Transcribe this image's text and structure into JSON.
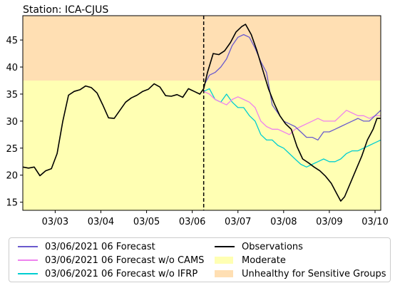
{
  "chart_data": {
    "type": "line",
    "title": "Station: ICA-CJUS",
    "xlabel": "",
    "ylabel": "",
    "xlim": [
      "2021-03-02 07:00",
      "2021-03-10 03:00"
    ],
    "ylim": [
      13.5,
      49.5
    ],
    "x_ticks": [
      "03/03",
      "03/04",
      "03/05",
      "03/06",
      "03/07",
      "03/08",
      "03/09",
      "03/10"
    ],
    "y_ticks": [
      15,
      20,
      25,
      30,
      35,
      40,
      45
    ],
    "bands": [
      {
        "name": "Moderate",
        "y0": 13.5,
        "y1": 37.5,
        "color": "#ffffb3"
      },
      {
        "name": "Unhealthy for Sensitive Groups",
        "y0": 37.5,
        "y1": 49.5,
        "color": "#ffdfb3"
      }
    ],
    "vline": {
      "x": "2021-03-06 06:00",
      "style": "dashed"
    },
    "series": [
      {
        "name": "Observations",
        "color": "#000000",
        "points": [
          [
            "2021-03-02 07:00",
            21.5
          ],
          [
            "2021-03-02 10:00",
            21.3
          ],
          [
            "2021-03-02 13:00",
            21.5
          ],
          [
            "2021-03-02 16:00",
            19.9
          ],
          [
            "2021-03-02 19:00",
            20.8
          ],
          [
            "2021-03-02 22:00",
            21.2
          ],
          [
            "2021-03-03 01:00",
            24
          ],
          [
            "2021-03-03 04:00",
            30
          ],
          [
            "2021-03-03 07:00",
            34.8
          ],
          [
            "2021-03-03 10:00",
            35.5
          ],
          [
            "2021-03-03 13:00",
            35.8
          ],
          [
            "2021-03-03 16:00",
            36.5
          ],
          [
            "2021-03-03 19:00",
            36.2
          ],
          [
            "2021-03-03 22:00",
            35.2
          ],
          [
            "2021-03-04 01:00",
            33
          ],
          [
            "2021-03-04 04:00",
            30.6
          ],
          [
            "2021-03-04 07:00",
            30.5
          ],
          [
            "2021-03-04 10:00",
            32
          ],
          [
            "2021-03-04 13:00",
            33.5
          ],
          [
            "2021-03-04 16:00",
            34.3
          ],
          [
            "2021-03-04 19:00",
            34.8
          ],
          [
            "2021-03-04 22:00",
            35.5
          ],
          [
            "2021-03-05 01:00",
            35.9
          ],
          [
            "2021-03-05 04:00",
            36.9
          ],
          [
            "2021-03-05 07:00",
            36.3
          ],
          [
            "2021-03-05 10:00",
            34.7
          ],
          [
            "2021-03-05 13:00",
            34.6
          ],
          [
            "2021-03-05 16:00",
            34.9
          ],
          [
            "2021-03-05 19:00",
            34.4
          ],
          [
            "2021-03-05 22:00",
            36
          ],
          [
            "2021-03-06 01:00",
            35.5
          ],
          [
            "2021-03-06 04:00",
            35
          ],
          [
            "2021-03-06 06:00",
            36
          ],
          [
            "2021-03-06 08:00",
            39
          ],
          [
            "2021-03-06 11:00",
            42.5
          ],
          [
            "2021-03-06 14:00",
            42.3
          ],
          [
            "2021-03-06 17:00",
            43
          ],
          [
            "2021-03-06 20:00",
            44.5
          ],
          [
            "2021-03-06 23:00",
            46.5
          ],
          [
            "2021-03-07 02:00",
            47.5
          ],
          [
            "2021-03-07 04:00",
            47.9
          ],
          [
            "2021-03-07 07:00",
            46
          ],
          [
            "2021-03-07 10:00",
            43
          ],
          [
            "2021-03-07 13:00",
            39.5
          ],
          [
            "2021-03-07 16:00",
            36
          ],
          [
            "2021-03-07 19:00",
            33.3
          ],
          [
            "2021-03-07 22:00",
            31
          ],
          [
            "2021-03-08 01:00",
            29.5
          ],
          [
            "2021-03-08 04:00",
            28.5
          ],
          [
            "2021-03-08 07:00",
            25.3
          ],
          [
            "2021-03-08 10:00",
            23
          ],
          [
            "2021-03-08 13:00",
            22.3
          ],
          [
            "2021-03-08 16:00",
            21.5
          ],
          [
            "2021-03-08 19:00",
            20.8
          ],
          [
            "2021-03-08 22:00",
            19.8
          ],
          [
            "2021-03-09 01:00",
            18.5
          ],
          [
            "2021-03-09 04:00",
            16.5
          ],
          [
            "2021-03-09 06:00",
            15.2
          ],
          [
            "2021-03-09 08:00",
            16
          ],
          [
            "2021-03-09 11:00",
            18.5
          ],
          [
            "2021-03-09 14:00",
            21
          ],
          [
            "2021-03-09 17:00",
            23.5
          ],
          [
            "2021-03-09 20:00",
            26.5
          ],
          [
            "2021-03-09 23:00",
            28.5
          ],
          [
            "2021-03-10 01:00",
            30.5
          ],
          [
            "2021-03-10 03:00",
            30.5
          ]
        ]
      },
      {
        "name": "03/06/2021 06 Forecast",
        "color": "#6a5acd",
        "points": [
          [
            "2021-03-06 06:00",
            36.5
          ],
          [
            "2021-03-06 09:00",
            38.5
          ],
          [
            "2021-03-06 12:00",
            39
          ],
          [
            "2021-03-06 15:00",
            40
          ],
          [
            "2021-03-06 18:00",
            41.5
          ],
          [
            "2021-03-06 21:00",
            44
          ],
          [
            "2021-03-07 00:00",
            45.5
          ],
          [
            "2021-03-07 03:00",
            46
          ],
          [
            "2021-03-07 06:00",
            45.5
          ],
          [
            "2021-03-07 09:00",
            43.5
          ],
          [
            "2021-03-07 12:00",
            41
          ],
          [
            "2021-03-07 15:00",
            39
          ],
          [
            "2021-03-07 18:00",
            33
          ],
          [
            "2021-03-07 21:00",
            31.5
          ],
          [
            "2021-03-08 00:00",
            30
          ],
          [
            "2021-03-08 03:00",
            29.5
          ],
          [
            "2021-03-08 06:00",
            29
          ],
          [
            "2021-03-08 09:00",
            28
          ],
          [
            "2021-03-08 12:00",
            27
          ],
          [
            "2021-03-08 15:00",
            27
          ],
          [
            "2021-03-08 18:00",
            26.5
          ],
          [
            "2021-03-08 21:00",
            28
          ],
          [
            "2021-03-09 00:00",
            28
          ],
          [
            "2021-03-09 03:00",
            28.5
          ],
          [
            "2021-03-09 06:00",
            29
          ],
          [
            "2021-03-09 09:00",
            29.5
          ],
          [
            "2021-03-09 12:00",
            30
          ],
          [
            "2021-03-09 15:00",
            30.5
          ],
          [
            "2021-03-09 18:00",
            30
          ],
          [
            "2021-03-09 21:00",
            30
          ],
          [
            "2021-03-10 00:00",
            31
          ],
          [
            "2021-03-10 03:00",
            32
          ]
        ]
      },
      {
        "name": "03/06/2021 06 Forecast w/o CAMS",
        "color": "#ee82ee",
        "points": [
          [
            "2021-03-06 06:00",
            35.5
          ],
          [
            "2021-03-06 09:00",
            35
          ],
          [
            "2021-03-06 12:00",
            34
          ],
          [
            "2021-03-06 15:00",
            33.5
          ],
          [
            "2021-03-06 18:00",
            33
          ],
          [
            "2021-03-06 21:00",
            34
          ],
          [
            "2021-03-07 00:00",
            34.5
          ],
          [
            "2021-03-07 03:00",
            34
          ],
          [
            "2021-03-07 06:00",
            33.5
          ],
          [
            "2021-03-07 09:00",
            32.5
          ],
          [
            "2021-03-07 12:00",
            30
          ],
          [
            "2021-03-07 15:00",
            29
          ],
          [
            "2021-03-07 18:00",
            28.5
          ],
          [
            "2021-03-07 21:00",
            28.5
          ],
          [
            "2021-03-08 00:00",
            28
          ],
          [
            "2021-03-08 03:00",
            27.5
          ],
          [
            "2021-03-08 06:00",
            28.5
          ],
          [
            "2021-03-08 09:00",
            29
          ],
          [
            "2021-03-08 12:00",
            29.5
          ],
          [
            "2021-03-08 15:00",
            30
          ],
          [
            "2021-03-08 18:00",
            30.5
          ],
          [
            "2021-03-08 21:00",
            30
          ],
          [
            "2021-03-09 00:00",
            30
          ],
          [
            "2021-03-09 03:00",
            30
          ],
          [
            "2021-03-09 06:00",
            31
          ],
          [
            "2021-03-09 09:00",
            32
          ],
          [
            "2021-03-09 12:00",
            31.5
          ],
          [
            "2021-03-09 15:00",
            31
          ],
          [
            "2021-03-09 18:00",
            31
          ],
          [
            "2021-03-09 21:00",
            30.5
          ],
          [
            "2021-03-10 00:00",
            31
          ],
          [
            "2021-03-10 03:00",
            31
          ]
        ]
      },
      {
        "name": "03/06/2021 06 Forecast w/o IFRP",
        "color": "#00ced1",
        "points": [
          [
            "2021-03-06 06:00",
            35.5
          ],
          [
            "2021-03-06 09:00",
            36
          ],
          [
            "2021-03-06 12:00",
            34
          ],
          [
            "2021-03-06 15:00",
            33.5
          ],
          [
            "2021-03-06 18:00",
            35
          ],
          [
            "2021-03-06 21:00",
            33.5
          ],
          [
            "2021-03-07 00:00",
            32.5
          ],
          [
            "2021-03-07 03:00",
            32.5
          ],
          [
            "2021-03-07 06:00",
            31
          ],
          [
            "2021-03-07 09:00",
            30
          ],
          [
            "2021-03-07 12:00",
            27.5
          ],
          [
            "2021-03-07 15:00",
            26.5
          ],
          [
            "2021-03-07 18:00",
            26.5
          ],
          [
            "2021-03-07 21:00",
            25.5
          ],
          [
            "2021-03-08 00:00",
            25
          ],
          [
            "2021-03-08 03:00",
            24
          ],
          [
            "2021-03-08 06:00",
            23
          ],
          [
            "2021-03-08 09:00",
            22
          ],
          [
            "2021-03-08 12:00",
            21.5
          ],
          [
            "2021-03-08 15:00",
            22
          ],
          [
            "2021-03-08 18:00",
            22.5
          ],
          [
            "2021-03-08 21:00",
            23
          ],
          [
            "2021-03-09 00:00",
            22.5
          ],
          [
            "2021-03-09 03:00",
            22.5
          ],
          [
            "2021-03-09 06:00",
            23
          ],
          [
            "2021-03-09 09:00",
            24
          ],
          [
            "2021-03-09 12:00",
            24.5
          ],
          [
            "2021-03-09 15:00",
            24.5
          ],
          [
            "2021-03-09 18:00",
            25
          ],
          [
            "2021-03-09 21:00",
            25.5
          ],
          [
            "2021-03-10 00:00",
            26
          ],
          [
            "2021-03-10 03:00",
            26.5
          ]
        ]
      }
    ]
  },
  "legend": {
    "items": [
      {
        "label": "03/06/2021 06 Forecast",
        "color": "#6a5acd",
        "kind": "line"
      },
      {
        "label": "03/06/2021 06 Forecast w/o CAMS",
        "color": "#ee82ee",
        "kind": "line"
      },
      {
        "label": "03/06/2021 06 Forecast w/o IFRP",
        "color": "#00ced1",
        "kind": "line"
      },
      {
        "label": "Observations",
        "color": "#000000",
        "kind": "line"
      },
      {
        "label": "Moderate",
        "color": "#ffffb3",
        "kind": "box"
      },
      {
        "label": "Unhealthy for Sensitive Groups",
        "color": "#ffdfb3",
        "kind": "box"
      }
    ]
  }
}
